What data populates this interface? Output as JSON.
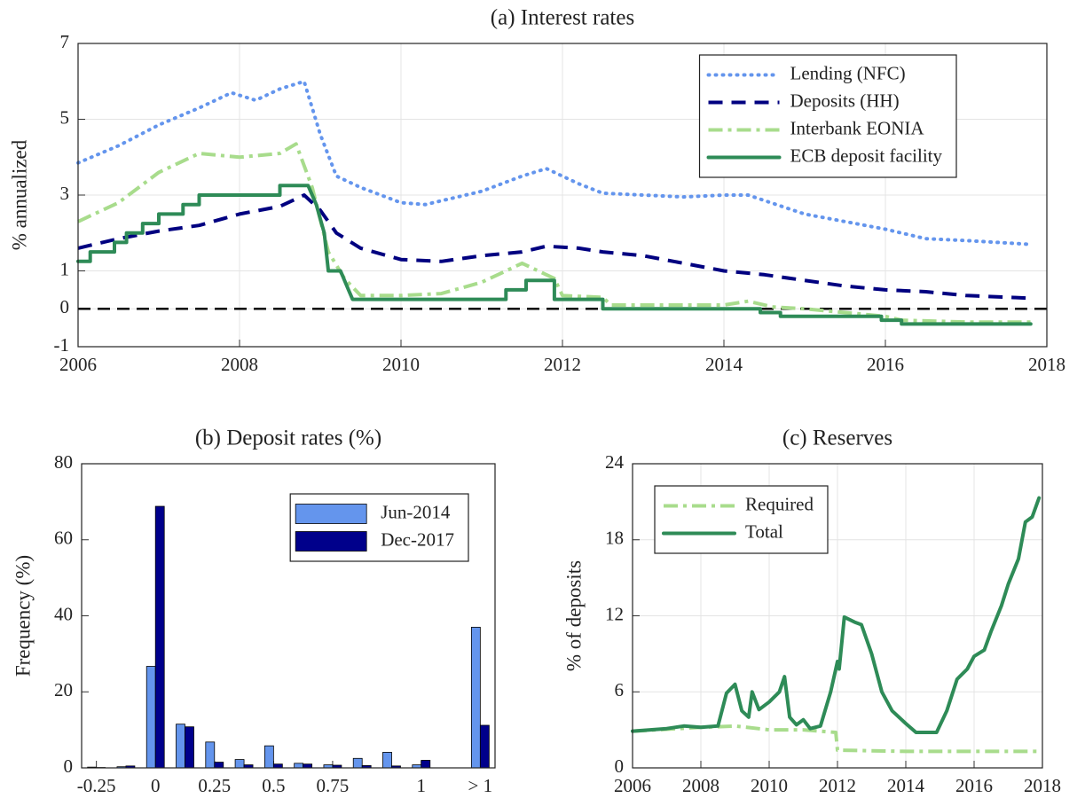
{
  "chart_data": [
    {
      "type": "line",
      "title": "(a) Interest rates",
      "ylabel": "% annualized",
      "xlim": [
        2006,
        2018
      ],
      "xticks": [
        2006,
        2008,
        2010,
        2012,
        2014,
        2016,
        2018
      ],
      "ylim": [
        -1,
        7
      ],
      "yticks": [
        -1,
        0,
        1,
        3,
        5,
        7
      ],
      "grid": true,
      "legend": "northeast",
      "hline": 0,
      "series": [
        {
          "name": "Lending (NFC)",
          "color": "#6495ed",
          "style": "dotted",
          "x": [
            2006,
            2006.5,
            2007,
            2007.5,
            2007.9,
            2008.2,
            2008.5,
            2008.8,
            2009.0,
            2009.2,
            2009.5,
            2010,
            2010.3,
            2011,
            2011.5,
            2011.8,
            2012.2,
            2012.5,
            2013,
            2013.5,
            2014,
            2014.3,
            2015,
            2015.5,
            2016,
            2016.5,
            2017,
            2017.8
          ],
          "values": [
            3.85,
            4.3,
            4.85,
            5.3,
            5.7,
            5.5,
            5.8,
            6.0,
            4.6,
            3.5,
            3.2,
            2.8,
            2.75,
            3.1,
            3.5,
            3.7,
            3.3,
            3.05,
            3.0,
            2.95,
            3.0,
            3.0,
            2.5,
            2.3,
            2.1,
            1.85,
            1.8,
            1.7
          ]
        },
        {
          "name": "Deposits (HH)",
          "color": "#000080",
          "style": "dashed",
          "x": [
            2006,
            2006.5,
            2007,
            2007.5,
            2008,
            2008.5,
            2008.8,
            2009.0,
            2009.2,
            2009.5,
            2010,
            2010.5,
            2011,
            2011.5,
            2011.8,
            2012.2,
            2012.5,
            2013,
            2013.5,
            2014,
            2014.5,
            2015,
            2015.5,
            2016,
            2016.5,
            2017,
            2017.8
          ],
          "values": [
            1.6,
            1.85,
            2.05,
            2.2,
            2.5,
            2.7,
            3.0,
            2.6,
            2.0,
            1.6,
            1.3,
            1.25,
            1.4,
            1.5,
            1.65,
            1.6,
            1.5,
            1.4,
            1.2,
            1.0,
            0.9,
            0.75,
            0.6,
            0.5,
            0.45,
            0.35,
            0.28
          ]
        },
        {
          "name": "Interbank EONIA",
          "color": "#a8dc8c",
          "style": "dashdot",
          "x": [
            2006,
            2006.5,
            2007,
            2007.5,
            2008,
            2008.5,
            2008.7,
            2008.9,
            2009.1,
            2009.3,
            2009.5,
            2010,
            2010.5,
            2011,
            2011.3,
            2011.5,
            2011.9,
            2012,
            2012.5,
            2012.6,
            2013,
            2014,
            2014.3,
            2014.6,
            2015,
            2015.5,
            2016,
            2016.2,
            2017,
            2017.8
          ],
          "values": [
            2.3,
            2.8,
            3.6,
            4.1,
            4.0,
            4.1,
            4.35,
            3.2,
            1.5,
            0.8,
            0.35,
            0.35,
            0.4,
            0.7,
            1.0,
            1.2,
            0.8,
            0.35,
            0.3,
            0.1,
            0.1,
            0.1,
            0.2,
            0.05,
            0.0,
            -0.1,
            -0.2,
            -0.3,
            -0.35,
            -0.35
          ]
        },
        {
          "name": "ECB deposit facility",
          "color": "#2e8b57",
          "style": "solid",
          "x": [
            2006,
            2006.15,
            2006.15,
            2006.45,
            2006.45,
            2006.6,
            2006.6,
            2006.8,
            2006.8,
            2007,
            2007,
            2007.3,
            2007.3,
            2007.5,
            2007.5,
            2008.5,
            2008.5,
            2008.85,
            2008.95,
            2009.05,
            2009.1,
            2009.25,
            2009.35,
            2009.4,
            2011.3,
            2011.3,
            2011.55,
            2011.55,
            2011.9,
            2011.9,
            2012.5,
            2012.5,
            2014.45,
            2014.45,
            2014.7,
            2014.7,
            2015.95,
            2015.95,
            2016.2,
            2016.2,
            2017.8
          ],
          "values": [
            1.25,
            1.25,
            1.5,
            1.5,
            1.75,
            1.75,
            2.0,
            2.0,
            2.25,
            2.25,
            2.5,
            2.5,
            2.75,
            2.75,
            3.0,
            3.0,
            3.25,
            3.25,
            2.75,
            2.0,
            1.0,
            1.0,
            0.5,
            0.25,
            0.25,
            0.5,
            0.5,
            0.75,
            0.75,
            0.25,
            0.25,
            0.0,
            0.0,
            -0.1,
            -0.1,
            -0.2,
            -0.2,
            -0.3,
            -0.3,
            -0.4,
            -0.4
          ]
        }
      ]
    },
    {
      "type": "bar",
      "title": "(b) Deposit rates (%)",
      "ylabel": "Frequency (%)",
      "categories": [
        "-0.25",
        null,
        "0",
        null,
        "0.25",
        null,
        "0.5",
        null,
        "0.75",
        null,
        null,
        "1",
        null,
        "> 1"
      ],
      "ylim": [
        0,
        80
      ],
      "yticks": [
        0,
        20,
        40,
        60,
        80
      ],
      "grid": false,
      "legend": "northeast",
      "series": [
        {
          "name": "Jun-2014",
          "color": "#6495ed",
          "values": [
            0.2,
            0.3,
            26.7,
            11.5,
            6.8,
            2.2,
            5.8,
            1.2,
            0.8,
            2.5,
            4.1,
            0.8,
            0,
            37
          ]
        },
        {
          "name": "Dec-2017",
          "color": "#00008b",
          "values": [
            0.1,
            0.5,
            68.8,
            10.8,
            1.5,
            0.8,
            1.0,
            1.0,
            0.7,
            0.6,
            0.5,
            2.0,
            0,
            11.2
          ]
        }
      ]
    },
    {
      "type": "line",
      "title": "(c) Reserves",
      "ylabel": "% of deposits",
      "xlim": [
        2006,
        2018
      ],
      "xticks": [
        2006,
        2008,
        2010,
        2012,
        2014,
        2016,
        2018
      ],
      "ylim": [
        0,
        24
      ],
      "yticks": [
        0,
        6,
        12,
        18,
        24
      ],
      "grid": true,
      "legend": "northwest",
      "series": [
        {
          "name": "Required",
          "color": "#a8dc8c",
          "style": "dashdot",
          "x": [
            2006,
            2008,
            2009,
            2010,
            2011,
            2011.95,
            2012.0,
            2014,
            2016,
            2017.9
          ],
          "values": [
            2.9,
            3.2,
            3.3,
            3.0,
            3.0,
            2.8,
            1.4,
            1.3,
            1.3,
            1.3
          ]
        },
        {
          "name": "Total",
          "color": "#2e8b57",
          "style": "solid",
          "x": [
            2006,
            2007,
            2007.5,
            2008,
            2008.5,
            2008.75,
            2009,
            2009.2,
            2009.4,
            2009.5,
            2009.7,
            2010,
            2010.3,
            2010.45,
            2010.6,
            2010.8,
            2011,
            2011.2,
            2011.5,
            2011.8,
            2012,
            2012.05,
            2012.2,
            2012.5,
            2012.7,
            2013,
            2013.3,
            2013.6,
            2014,
            2014.3,
            2014.6,
            2014.9,
            2015.2,
            2015.5,
            2015.8,
            2016,
            2016.3,
            2016.5,
            2016.8,
            2017,
            2017.3,
            2017.5,
            2017.7,
            2017.9
          ],
          "values": [
            2.9,
            3.1,
            3.3,
            3.2,
            3.3,
            5.9,
            6.6,
            4.5,
            4.0,
            6.0,
            4.6,
            5.2,
            6.0,
            7.2,
            4.0,
            3.4,
            3.8,
            3.1,
            3.3,
            6.0,
            8.4,
            7.8,
            11.9,
            11.5,
            11.3,
            9.0,
            6.0,
            4.5,
            3.5,
            2.8,
            2.8,
            2.8,
            4.5,
            7.0,
            7.8,
            8.8,
            9.3,
            10.8,
            12.8,
            14.5,
            16.5,
            19.4,
            19.8,
            21.3
          ]
        }
      ]
    }
  ]
}
